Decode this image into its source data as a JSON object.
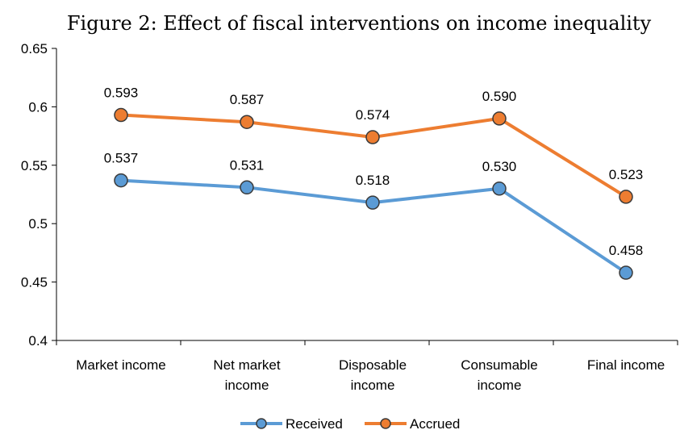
{
  "chart_data": {
    "type": "line",
    "title": "Figure 2: Effect of fiscal interventions on income inequality",
    "xlabel": "",
    "ylabel": "",
    "categories": [
      [
        "Market income"
      ],
      [
        "Net market",
        "income"
      ],
      [
        "Disposable",
        "income"
      ],
      [
        "Consumable",
        "income"
      ],
      [
        "Final income"
      ]
    ],
    "yticks": [
      "0.4",
      "0.45",
      "0.5",
      "0.55",
      "0.6",
      "0.65"
    ],
    "ylim": [
      0.4,
      0.65
    ],
    "grid": false,
    "legend_position": "bottom",
    "series": [
      {
        "name": "Received",
        "values": [
          0.537,
          0.531,
          0.518,
          0.53,
          0.458
        ],
        "labels": [
          "0.537",
          "0.531",
          "0.518",
          "0.530",
          "0.458"
        ],
        "color": "#5b9bd5",
        "marker_color": "#5b9bd5"
      },
      {
        "name": "Accrued",
        "values": [
          0.593,
          0.587,
          0.574,
          0.59,
          0.523
        ],
        "labels": [
          "0.593",
          "0.587",
          "0.574",
          "0.590",
          "0.523"
        ],
        "color": "#ed7d31",
        "marker_color": "#ed7d31"
      }
    ]
  }
}
